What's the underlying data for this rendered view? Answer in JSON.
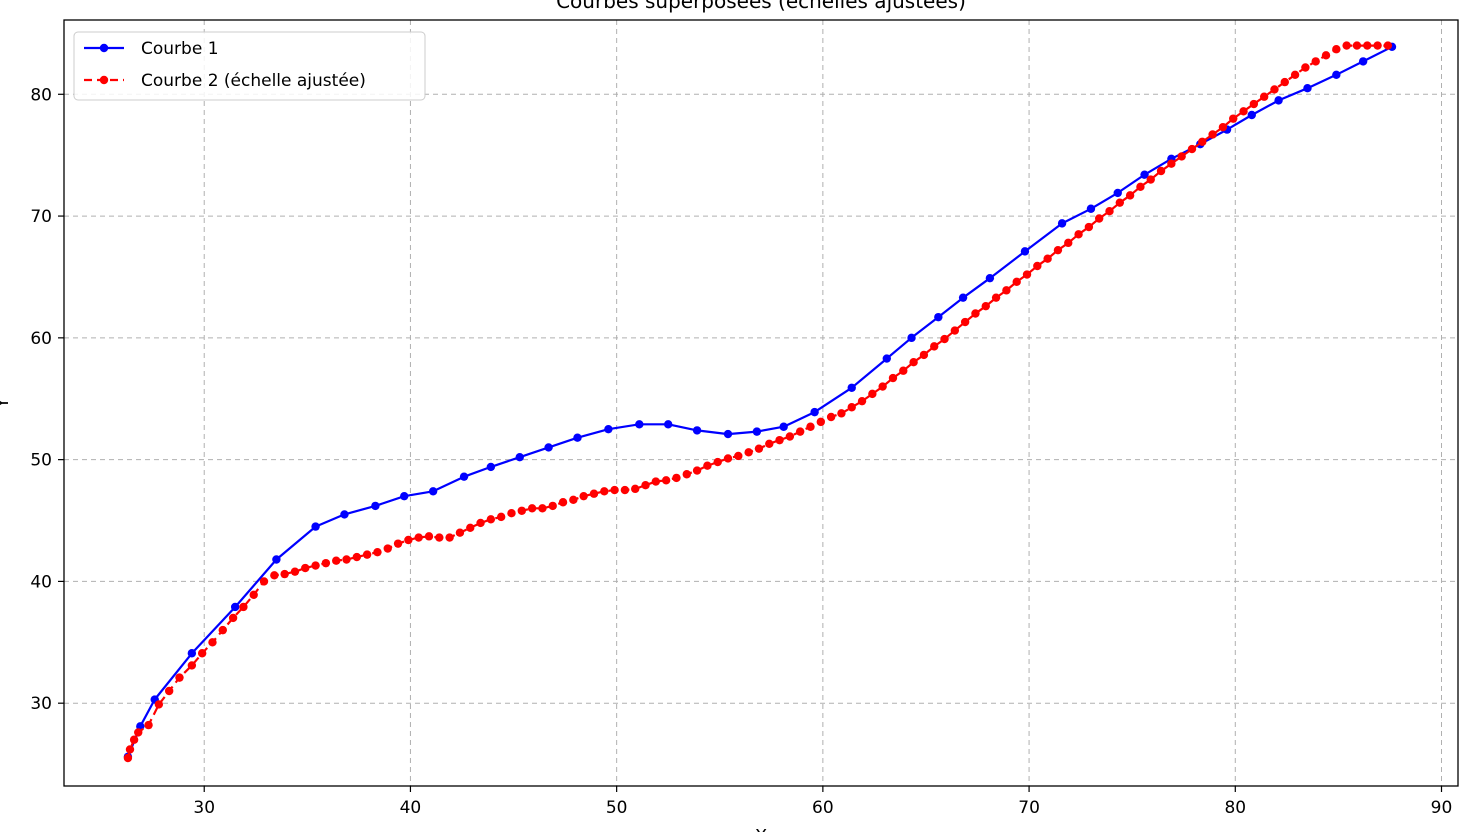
{
  "chart_data": {
    "type": "line",
    "title": "Courbes superposées (échelles ajustées)",
    "xlabel": "X",
    "ylabel": "Y",
    "xlim": [
      23.2,
      90.8
    ],
    "ylim": [
      23.2,
      86.1
    ],
    "xticks": [
      30,
      40,
      50,
      60,
      70,
      80,
      90
    ],
    "yticks": [
      30,
      40,
      50,
      60,
      70,
      80
    ],
    "grid": true,
    "legend_position": "top-left",
    "series": [
      {
        "name": "Courbe 1",
        "color": "#0000ff",
        "line_style": "solid",
        "marker": "circle",
        "x": [
          26.3,
          26.9,
          27.6,
          29.4,
          31.5,
          33.5,
          35.4,
          36.8,
          38.3,
          39.7,
          41.1,
          42.6,
          43.9,
          45.3,
          46.7,
          48.1,
          49.6,
          51.1,
          52.5,
          53.9,
          55.4,
          56.8,
          58.1,
          59.6,
          61.4,
          63.1,
          64.3,
          65.6,
          66.8,
          68.1,
          69.8,
          71.6,
          73.0,
          74.3,
          75.6,
          76.9,
          78.3,
          79.6,
          80.8,
          82.1,
          83.5,
          84.9,
          86.2,
          87.6
        ],
        "y": [
          25.6,
          28.1,
          30.3,
          34.1,
          37.9,
          41.8,
          44.5,
          45.5,
          46.2,
          47.0,
          47.4,
          48.6,
          49.4,
          50.2,
          51.0,
          51.8,
          52.5,
          52.9,
          52.9,
          52.4,
          52.1,
          52.3,
          52.7,
          53.9,
          55.9,
          58.3,
          60.0,
          61.7,
          63.3,
          64.9,
          67.1,
          69.4,
          70.6,
          71.9,
          73.4,
          74.7,
          75.9,
          77.1,
          78.3,
          79.5,
          80.5,
          81.6,
          82.7,
          83.9
        ]
      },
      {
        "name": "Courbe 2 (échelle ajustée)",
        "color": "#ff0000",
        "line_style": "dashed",
        "marker": "circle",
        "x": [
          26.3,
          26.4,
          26.6,
          26.8,
          27.3,
          27.8,
          28.3,
          28.8,
          29.4,
          29.9,
          30.4,
          30.9,
          31.4,
          31.9,
          32.4,
          32.9,
          33.4,
          33.9,
          34.4,
          34.9,
          35.4,
          35.9,
          36.4,
          36.9,
          37.4,
          37.9,
          38.4,
          38.9,
          39.4,
          39.9,
          40.4,
          40.9,
          41.4,
          41.9,
          42.4,
          42.9,
          43.4,
          43.9,
          44.4,
          44.9,
          45.4,
          45.9,
          46.4,
          46.9,
          47.4,
          47.9,
          48.4,
          48.9,
          49.4,
          49.9,
          50.4,
          50.9,
          51.4,
          51.9,
          52.4,
          52.9,
          53.4,
          53.9,
          54.4,
          54.9,
          55.4,
          55.9,
          56.4,
          56.9,
          57.4,
          57.9,
          58.4,
          58.9,
          59.4,
          59.9,
          60.4,
          60.9,
          61.4,
          61.9,
          62.4,
          62.9,
          63.4,
          63.9,
          64.4,
          64.9,
          65.4,
          65.9,
          66.4,
          66.9,
          67.4,
          67.9,
          68.4,
          68.9,
          69.4,
          69.9,
          70.4,
          70.9,
          71.4,
          71.9,
          72.4,
          72.9,
          73.4,
          73.9,
          74.4,
          74.9,
          75.4,
          75.9,
          76.4,
          76.9,
          77.4,
          77.9,
          78.4,
          78.9,
          79.4,
          79.9,
          80.4,
          80.9,
          81.4,
          81.9,
          82.4,
          82.9,
          83.4,
          83.9,
          84.4,
          84.9,
          85.4,
          85.9,
          86.4,
          86.9,
          87.4
        ],
        "y": [
          25.5,
          26.2,
          27.0,
          27.6,
          28.2,
          29.9,
          31.0,
          32.1,
          33.1,
          34.1,
          35.0,
          36.0,
          37.0,
          37.9,
          38.9,
          40.0,
          40.5,
          40.6,
          40.8,
          41.1,
          41.3,
          41.5,
          41.7,
          41.8,
          42.0,
          42.2,
          42.4,
          42.7,
          43.1,
          43.4,
          43.6,
          43.7,
          43.6,
          43.6,
          44.0,
          44.4,
          44.8,
          45.1,
          45.3,
          45.6,
          45.8,
          46.0,
          46.0,
          46.2,
          46.5,
          46.7,
          47.0,
          47.2,
          47.4,
          47.5,
          47.5,
          47.6,
          47.9,
          48.2,
          48.3,
          48.5,
          48.8,
          49.1,
          49.5,
          49.8,
          50.1,
          50.3,
          50.6,
          50.9,
          51.3,
          51.6,
          51.9,
          52.3,
          52.7,
          53.1,
          53.5,
          53.8,
          54.3,
          54.8,
          55.4,
          56.0,
          56.7,
          57.3,
          58.0,
          58.6,
          59.3,
          59.9,
          60.6,
          61.3,
          62.0,
          62.6,
          63.3,
          63.9,
          64.6,
          65.2,
          65.9,
          66.5,
          67.2,
          67.8,
          68.5,
          69.1,
          69.8,
          70.4,
          71.1,
          71.7,
          72.4,
          73.0,
          73.7,
          74.3,
          74.9,
          75.5,
          76.1,
          76.7,
          77.3,
          78.0,
          78.6,
          79.2,
          79.8,
          80.4,
          81.0,
          81.6,
          82.2,
          82.7,
          83.2,
          83.7,
          84.0,
          84.0,
          84.0,
          84.0,
          84.0
        ]
      }
    ]
  }
}
